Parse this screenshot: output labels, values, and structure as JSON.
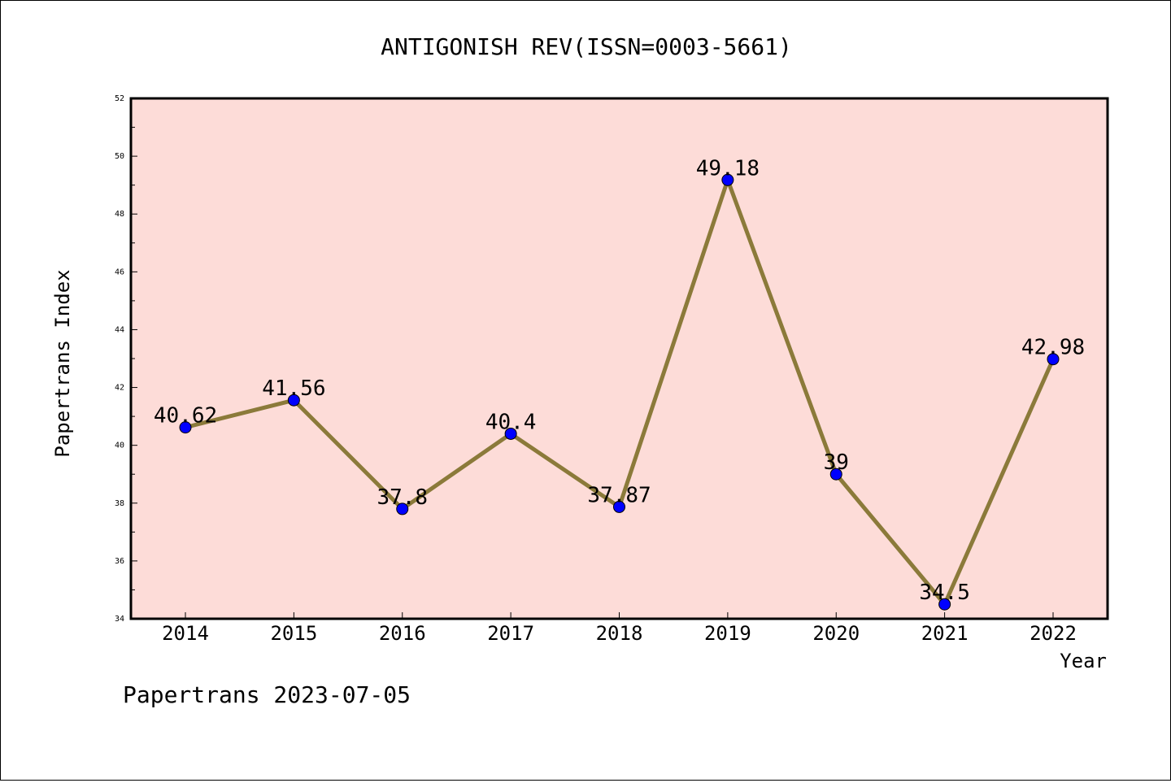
{
  "chart_data": {
    "type": "line",
    "title": "ANTIGONISH REV(ISSN=0003-5661)",
    "xlabel": "Year",
    "ylabel": "Papertrans Index",
    "categories": [
      "2014",
      "2015",
      "2016",
      "2017",
      "2018",
      "2019",
      "2020",
      "2021",
      "2022"
    ],
    "values": [
      40.62,
      41.56,
      37.8,
      40.4,
      37.87,
      49.18,
      39,
      34.5,
      42.98
    ],
    "data_labels": [
      "40.62",
      "41.56",
      "37.8",
      "40.4",
      "37.87",
      "49.18",
      "39",
      "34.5",
      "42.98"
    ],
    "ylim": [
      34,
      52
    ],
    "yticks": [
      "34",
      "36",
      "38",
      "40",
      "42",
      "44",
      "46",
      "48",
      "50",
      "52"
    ],
    "grid": false,
    "colors": {
      "plot_background": "#fddcd8",
      "line": "#8b7a3a",
      "marker": "#0000ff"
    }
  },
  "footer": "Papertrans 2023-07-05"
}
